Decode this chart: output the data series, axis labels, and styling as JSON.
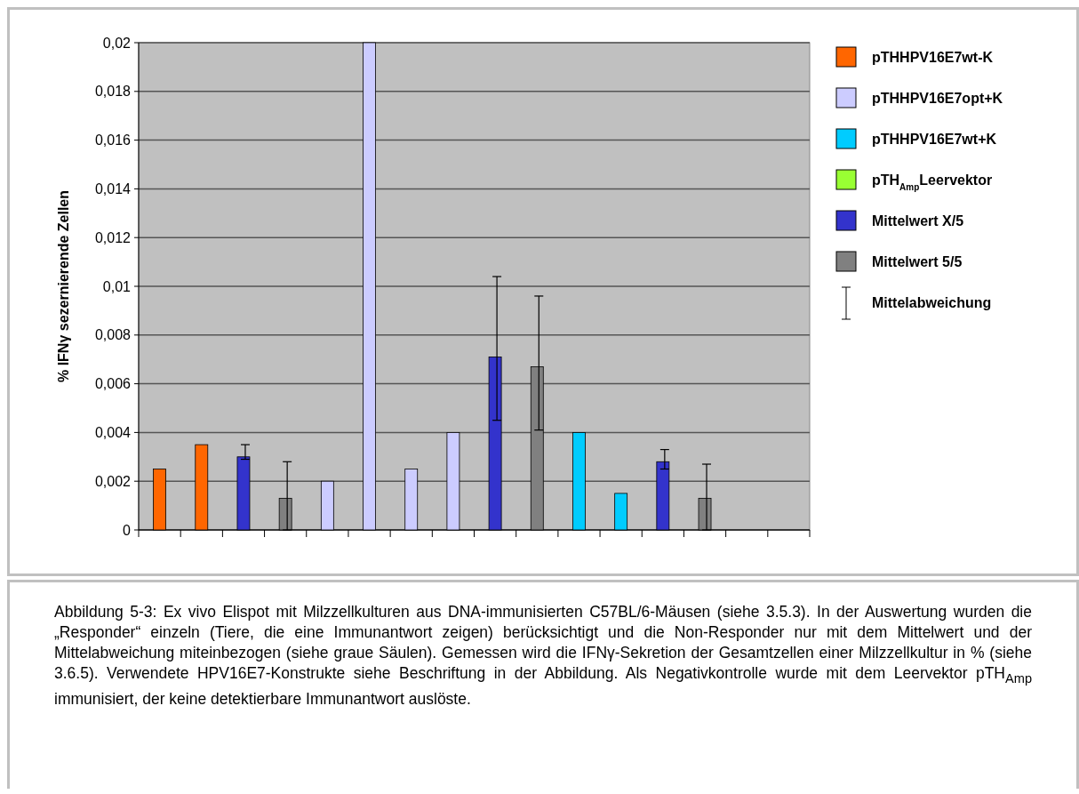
{
  "chart_data": {
    "type": "bar",
    "ylabel": "% IFNγ sezernierende Zellen",
    "categories": [
      null,
      null,
      null,
      null,
      null,
      null,
      null,
      null,
      null,
      null,
      null,
      null,
      null,
      null,
      null,
      null
    ],
    "series": [
      {
        "name": "pTHHPV16E7wt-K",
        "color": "#ff6600",
        "values": [
          0.0025,
          0.0035,
          null,
          null,
          null,
          null,
          null,
          null,
          null,
          null,
          null,
          null,
          null,
          null,
          null,
          null
        ]
      },
      {
        "name": "pTHHPV16E7opt+K",
        "color": "#ccccff",
        "values": [
          null,
          null,
          null,
          null,
          0.002,
          0.02,
          0.0025,
          0.004,
          null,
          null,
          null,
          null,
          null,
          null,
          null,
          null
        ]
      },
      {
        "name": "pTHHPV16E7wt+K",
        "color": "#00ccff",
        "values": [
          null,
          null,
          null,
          null,
          null,
          null,
          null,
          null,
          null,
          null,
          0.004,
          0.0015,
          null,
          null,
          null,
          null
        ]
      },
      {
        "name": "pTH$_{Amp}$Leervektor",
        "color": "#99ff33",
        "values": [
          null,
          null,
          null,
          null,
          null,
          null,
          null,
          null,
          null,
          null,
          null,
          null,
          null,
          null,
          0,
          0
        ]
      },
      {
        "name": "Mittelwert X/5",
        "color": "#3333cc",
        "values": [
          null,
          null,
          0.003,
          null,
          null,
          null,
          null,
          null,
          0.0071,
          null,
          null,
          null,
          0.0028,
          null,
          null,
          null
        ],
        "errors": [
          null,
          null,
          [
            0.0029,
            0.0035
          ],
          null,
          null,
          null,
          null,
          null,
          [
            0.0045,
            0.0104
          ],
          null,
          null,
          null,
          [
            0.0025,
            0.0033
          ],
          null,
          null,
          null
        ]
      },
      {
        "name": "Mittelwert 5/5",
        "color": "#808080",
        "values": [
          null,
          null,
          null,
          0.0013,
          null,
          null,
          null,
          null,
          null,
          0.0067,
          null,
          null,
          null,
          0.0013,
          null,
          null
        ],
        "errors": [
          null,
          null,
          null,
          [
            0,
            0.0028
          ],
          null,
          null,
          null,
          null,
          null,
          [
            0.0041,
            0.0096
          ],
          null,
          null,
          null,
          [
            0,
            0.0027
          ],
          null,
          null
        ]
      }
    ],
    "ylim": [
      0,
      0.02
    ],
    "yticks": [
      0,
      {
        "value": 0.002,
        "label": "0,002"
      },
      {
        "value": 0.004,
        "label": "0,004"
      },
      {
        "value": 0.006,
        "label": "0,006"
      },
      {
        "value": 0.008,
        "label": "0,008"
      },
      {
        "value": 0.01,
        "label": "0,01"
      },
      {
        "value": 0.012,
        "label": "0,012"
      },
      {
        "value": 0.014,
        "label": "0,014"
      },
      {
        "value": 0.016,
        "label": "0,016"
      },
      {
        "value": 0.018,
        "label": "0,018"
      },
      {
        "value": 0.02,
        "label": "0,02"
      }
    ],
    "grid": "y",
    "legend": "right",
    "annotations": [
      "Mittelabweichung",
      "Abbildung 5-3: Ex vivo Elispot mit Milzzellkulturen aus DNA-immunisierten C57BL/6-Mäusen (siehe 3.5.3). In der Auswertung wurden die „Responder“ einzeln (Tiere, die eine Immunantwort zeigen) berücksichtigt und die Non-Responder nur mit dem Mittelwert und der Mittelabweichung miteinbezogen (siehe graue Säulen).  Gemessen wird die IFNγ-Sekretion der Gesamtzellen einer Milzzellkultur in % (siehe 3.6.5). Verwendete HPV16E7-Konstrukte siehe Beschriftung in der Abbildung. Als Negativkontrolle wurde mit dem Leervektor pTH$_{Amp}$ immunisiert, der keine detektierbare Immunantwort auslöste."
    ]
  }
}
